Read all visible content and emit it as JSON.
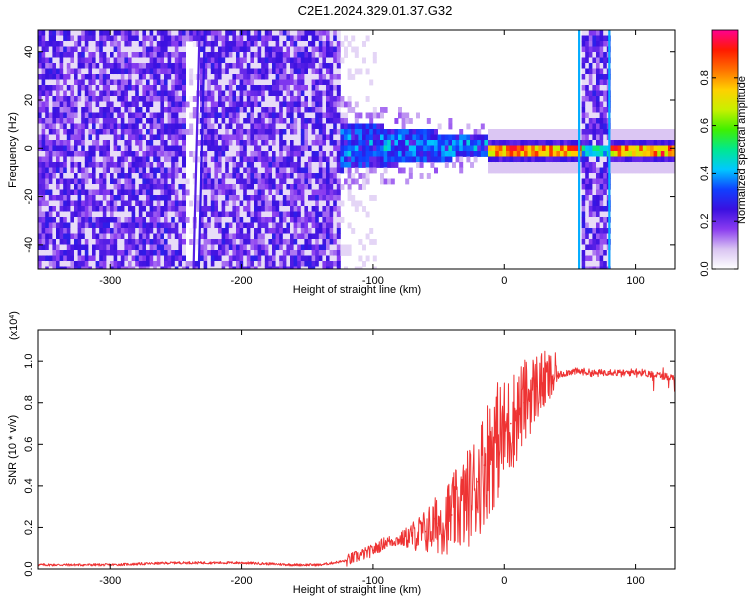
{
  "figure": {
    "title": "C2E1.2024.329.01.37.G32"
  },
  "chart_data": [
    {
      "type": "heatmap",
      "xlabel": "Height of straight line (km)",
      "ylabel": "Frequency (Hz)",
      "xlim": [
        -355,
        130
      ],
      "ylim": [
        -50,
        49
      ],
      "xticks": [
        -300,
        -200,
        -100,
        0,
        100
      ],
      "xtick_labels": [
        "-300",
        "-200",
        "-100",
        "0",
        "100"
      ],
      "yticks": [
        -40,
        -20,
        0,
        20,
        40
      ],
      "ytick_labels": [
        "-40",
        "-20",
        "0",
        "20",
        "40"
      ],
      "colorbar": {
        "label": "Normalized spectral amplitude",
        "range": [
          0.0,
          1.0
        ],
        "ticks": [
          0.0,
          0.2,
          0.4,
          0.6,
          0.8
        ],
        "tick_labels": [
          "0.0",
          "0.2",
          "0.4",
          "0.6",
          "0.8"
        ],
        "colormap": [
          "#ffffff",
          "#d9c4f2",
          "#8a3cf0",
          "#3a10e0",
          "#1040ff",
          "#00c8ff",
          "#00e890",
          "#40f000",
          "#c8f000",
          "#ffd000",
          "#ff7000",
          "#ff1a00",
          "#ff0090"
        ]
      },
      "regions": [
        {
          "name": "broadband noise",
          "x_range": [
            -355,
            -125
          ],
          "freq_range": [
            -50,
            49
          ],
          "amplitude": 0.25
        },
        {
          "name": "transition",
          "x_range": [
            -125,
            -15
          ],
          "center_freq": 2,
          "amplitude": 0.45
        },
        {
          "name": "narrowband line",
          "x_range": [
            -15,
            130
          ],
          "center_freq": 0,
          "amplitude": 0.8
        },
        {
          "name": "interference band",
          "x_range": [
            57,
            80
          ],
          "freq_range": [
            -50,
            49
          ],
          "amplitude": 0.25
        }
      ]
    },
    {
      "type": "line",
      "xlabel": "Height of straight line (km)",
      "ylabel": "SNR (10 * v/v)",
      "y_multiplier_label": "(x10",
      "y_multiplier_exp": "4",
      "y_multiplier_close": ")",
      "xlim": [
        -355,
        130
      ],
      "ylim": [
        0,
        1.15
      ],
      "xticks": [
        -300,
        -200,
        -100,
        0,
        100
      ],
      "xtick_labels": [
        "-300",
        "-200",
        "-100",
        "0",
        "100"
      ],
      "yticks": [
        0.0,
        0.2,
        0.4,
        0.6,
        0.8,
        1.0
      ],
      "ytick_labels": [
        "0.0",
        "0.2",
        "0.4",
        "0.6",
        "0.8",
        "1.0"
      ],
      "color": "#ee3333",
      "x": [
        -355,
        -300,
        -250,
        -200,
        -160,
        -140,
        -120,
        -100,
        -90,
        -80,
        -70,
        -60,
        -50,
        -40,
        -30,
        -20,
        -15,
        -10,
        -5,
        0,
        5,
        10,
        15,
        20,
        25,
        30,
        40,
        50,
        60,
        70,
        80,
        90,
        100,
        110,
        120,
        130
      ],
      "y": [
        0.02,
        0.02,
        0.03,
        0.03,
        0.02,
        0.02,
        0.04,
        0.09,
        0.13,
        0.14,
        0.16,
        0.18,
        0.22,
        0.26,
        0.32,
        0.42,
        0.5,
        0.58,
        0.62,
        0.65,
        0.7,
        0.75,
        0.8,
        0.84,
        0.88,
        0.9,
        0.93,
        0.95,
        0.95,
        0.94,
        0.95,
        0.94,
        0.95,
        0.94,
        0.93,
        0.92
      ]
    }
  ]
}
